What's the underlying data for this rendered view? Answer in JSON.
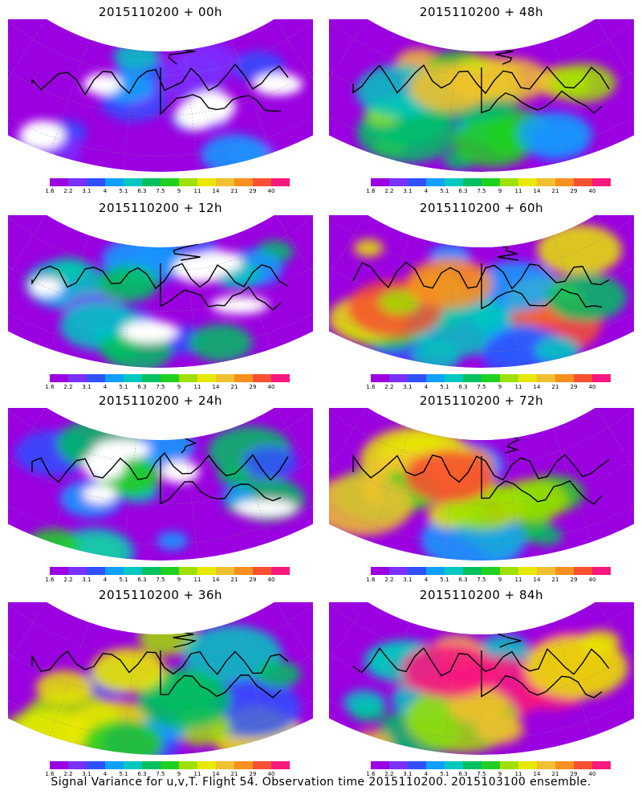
{
  "panels": [
    {
      "title": "2015110200 + 00h",
      "intensity": 0.25
    },
    {
      "title": "2015110200 + 48h",
      "intensity": 0.7
    },
    {
      "title": "2015110200 + 12h",
      "intensity": 0.4
    },
    {
      "title": "2015110200 + 60h",
      "intensity": 0.78
    },
    {
      "title": "2015110200 + 24h",
      "intensity": 0.45
    },
    {
      "title": "2015110200 + 72h",
      "intensity": 0.85
    },
    {
      "title": "2015110200 + 36h",
      "intensity": 0.62
    },
    {
      "title": "2015110200 + 84h",
      "intensity": 0.92
    }
  ],
  "colorbar": {
    "labels": [
      "1.6",
      "2.2",
      "3.1",
      "4",
      "5.1",
      "6.3",
      "7.5",
      "9",
      "11",
      "14",
      "21",
      "29",
      "40"
    ],
    "colors": [
      "#9a00e0",
      "#7a30ff",
      "#3050ff",
      "#10a0ff",
      "#00c8c0",
      "#00c060",
      "#20d020",
      "#a0e000",
      "#e8e800",
      "#f0c030",
      "#f89020",
      "#f85030",
      "#f81880"
    ]
  },
  "footer": "Signal Variance for u,v,T. Flight 54. Observation time 2015110200. 2015103100 ensemble."
}
